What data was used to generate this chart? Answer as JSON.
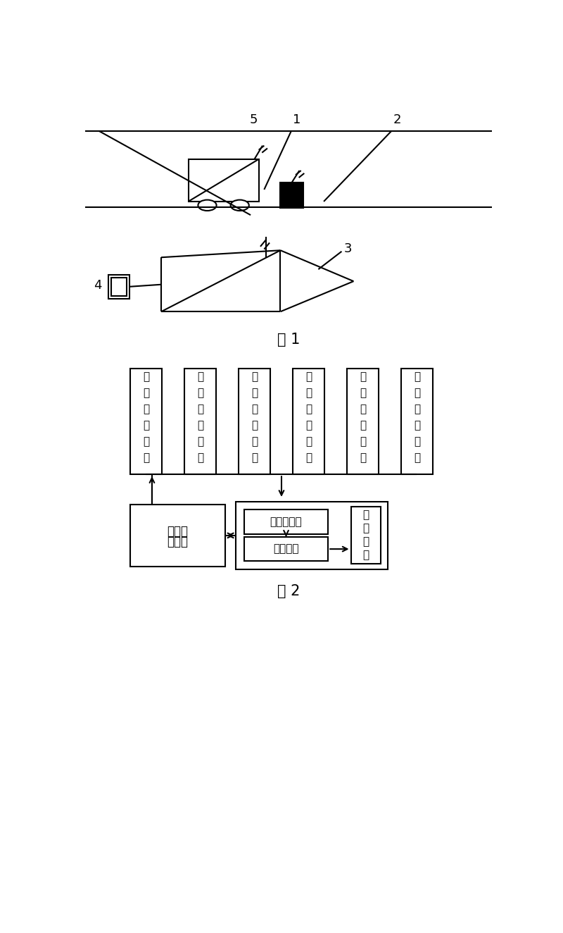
{
  "fig_width": 8.0,
  "fig_height": 13.24,
  "bg_color": "#ffffff",
  "lbl_5": "5",
  "lbl_1": "1",
  "lbl_2": "2",
  "lbl_3": "3",
  "lbl_4": "4",
  "fig1_caption": "图 1",
  "fig2_caption": "图 2",
  "mod0": "空气采样模块",
  "mod1": "灬尘采样模块",
  "mod2": "声纳传感模块",
  "mod3": "红外传感模块",
  "mod4": "视觉传感模块",
  "mod5": "无线通信模块",
  "detect_line1": "检测控",
  "detect_line2": "制单元",
  "motor_driver": "电机驱动器",
  "walk_motor": "行走电机",
  "motion_chars": [
    "运",
    "动",
    "机",
    "构"
  ]
}
